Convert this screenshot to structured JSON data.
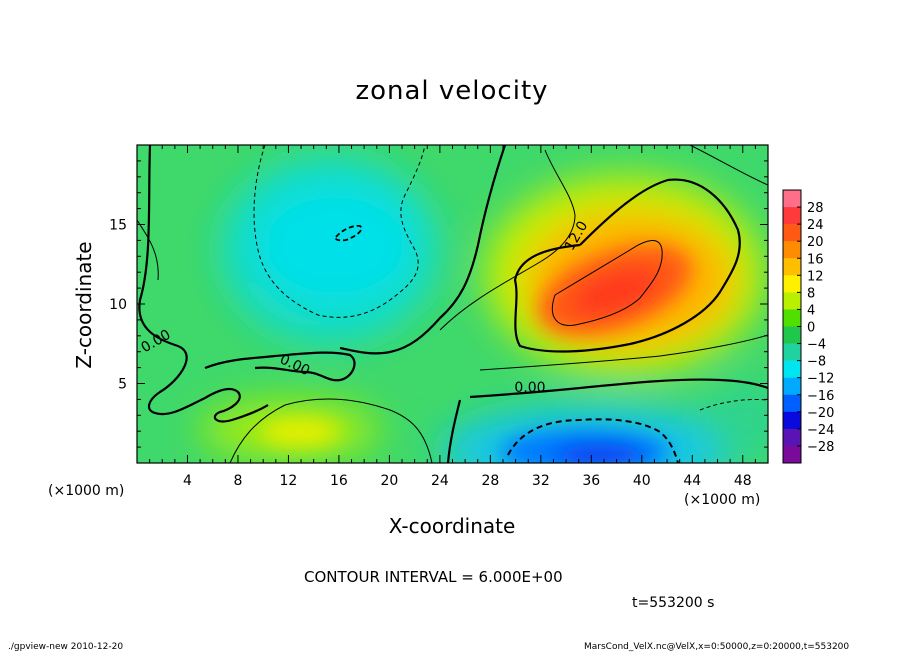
{
  "app": {
    "footer_left": "./gpview-new  2010-12-20",
    "footer_right": "MarsCond_VelX.nc@VelX,x=0:50000,z=0:20000,t=553200"
  },
  "chart_data": {
    "type": "heatmap",
    "title": "zonal velocity",
    "xlabel": "X-coordinate",
    "ylabel": "Z-coordinate",
    "x_unit": "(×1000 m)",
    "y_unit": "(×1000 m)",
    "xlim": [
      0,
      50
    ],
    "ylim": [
      0,
      20
    ],
    "x_ticks": [
      "4",
      "8",
      "12",
      "16",
      "20",
      "24",
      "28",
      "32",
      "36",
      "40",
      "44",
      "48"
    ],
    "y_ticks": [
      "5",
      "10",
      "15"
    ],
    "contour_interval_text": "CONTOUR INTERVAL = 6.000E+00",
    "time_text": "t=553200 s",
    "colorbar": {
      "levels": [
        "28",
        "24",
        "20",
        "16",
        "12",
        "8",
        "4",
        "0",
        "−4",
        "−8",
        "−12",
        "−16",
        "−20",
        "−24",
        "−28"
      ],
      "colors": [
        "#ff6f8a",
        "#ff3a3a",
        "#ff5a14",
        "#ff8c00",
        "#ffbe00",
        "#fff000",
        "#b8f000",
        "#50e000",
        "#1fc84a",
        "#1fd2a0",
        "#00e6f0",
        "#00aaff",
        "#0060ff",
        "#0a0adc",
        "#5a14b4",
        "#7a0a9a"
      ]
    },
    "contour_labels": [
      "12.0",
      "0.00",
      "0.00",
      "0.00"
    ],
    "features": [
      {
        "label": "positive maximum",
        "x": 38,
        "z": 11,
        "value": 22
      },
      {
        "label": "negative minimum (surface)",
        "x": 38,
        "z": 1.5,
        "value": -18
      },
      {
        "label": "negative region (upper left)",
        "x": 17,
        "z": 14.5,
        "value": -10
      },
      {
        "label": "positive region (lower left)",
        "x": 13,
        "z": 2.5,
        "value": 8
      }
    ]
  }
}
